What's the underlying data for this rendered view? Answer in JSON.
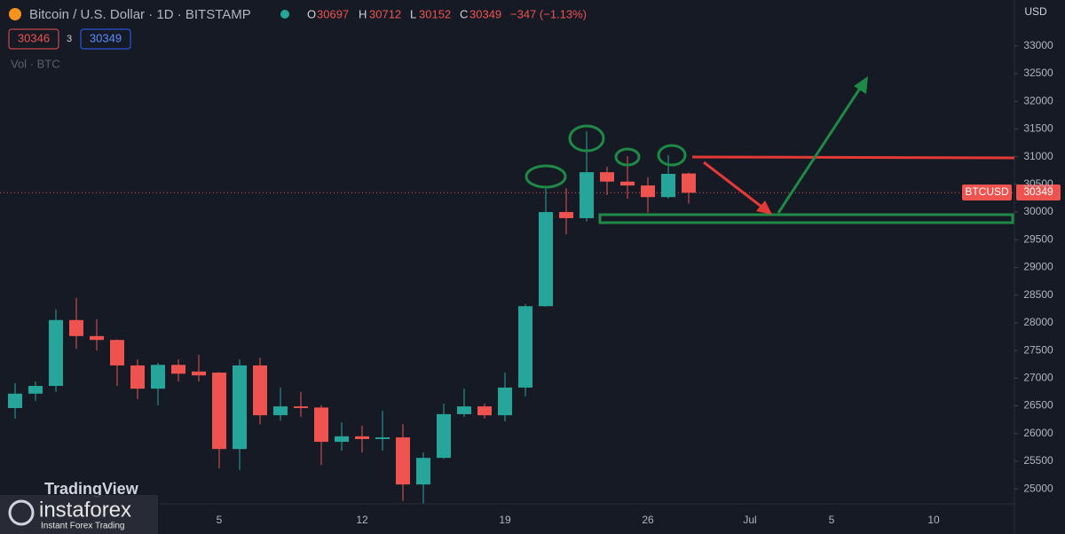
{
  "chart_data": {
    "type": "candlestick",
    "title": "Bitcoin / U.S. Dollar · 1D · BITSTAMP",
    "header": {
      "o_label": "O",
      "open": 30697,
      "h_label": "H",
      "high": 30712,
      "l_label": "L",
      "low": 30152,
      "c_label": "C",
      "close": 30349,
      "change": "−347 (−1.13%)"
    },
    "bid": 30346,
    "spread": 3,
    "ask": 30349,
    "volume_label": "Vol · BTC",
    "price_tag": {
      "symbol": "BTCUSD",
      "value": 30349
    },
    "currency": "USD",
    "watermark": "TradingView",
    "brand": "instaforex",
    "brand_tagline": "Instant Forex Trading",
    "categories": [
      null,
      null,
      null,
      null,
      null,
      null,
      null,
      null,
      null,
      null,
      "5",
      null,
      null,
      null,
      null,
      null,
      null,
      "12",
      null,
      null,
      null,
      null,
      null,
      null,
      "19",
      null,
      null,
      null,
      null,
      null,
      null,
      "26",
      null,
      null,
      null,
      null,
      "Jul",
      null,
      null,
      null,
      "5",
      null,
      null,
      null,
      null,
      "10",
      null,
      null,
      null
    ],
    "open": [
      26460,
      26720,
      26860,
      28050,
      27760,
      27690,
      27230,
      26810,
      27240,
      27120,
      27100,
      25720,
      27230,
      26330,
      26490,
      26470,
      25850,
      25950,
      25900,
      25930,
      25080,
      25560,
      26350,
      26490,
      26330,
      26830,
      28300,
      30000,
      29890,
      30720,
      30550,
      30480,
      30270,
      30697,
      null,
      null,
      null,
      null,
      null,
      null,
      null,
      null,
      null,
      null,
      null,
      null,
      null,
      null,
      null
    ],
    "high": [
      26910,
      26940,
      28240,
      28450,
      28060,
      27700,
      27340,
      27280,
      27340,
      27420,
      27110,
      27340,
      27370,
      26830,
      26750,
      26510,
      26200,
      26140,
      26410,
      26170,
      25660,
      26540,
      26810,
      26540,
      27100,
      28340,
      30420,
      30430,
      31460,
      30820,
      31010,
      30630,
      31030,
      30712,
      null,
      null,
      null,
      null,
      null,
      null,
      null,
      null,
      null,
      null,
      null,
      null,
      null,
      null,
      null
    ],
    "low": [
      26270,
      26590,
      26750,
      27530,
      27500,
      26860,
      26620,
      26510,
      26940,
      26940,
      25370,
      25340,
      26170,
      26230,
      26300,
      25430,
      25690,
      25660,
      25690,
      24780,
      24740,
      25540,
      26300,
      26270,
      26220,
      26670,
      28290,
      29600,
      29830,
      30310,
      30240,
      29990,
      30240,
      30152,
      null,
      null,
      null,
      null,
      null,
      null,
      null,
      null,
      null,
      null,
      null,
      null,
      null,
      null,
      null
    ],
    "close": [
      26720,
      26860,
      28050,
      27760,
      27690,
      27230,
      26810,
      27240,
      27080,
      27050,
      25720,
      27230,
      26330,
      26490,
      26460,
      25850,
      25950,
      25900,
      25930,
      25080,
      25560,
      26350,
      26490,
      26330,
      26830,
      28300,
      30000,
      29890,
      30720,
      30550,
      30480,
      30270,
      30690,
      30349,
      null,
      null,
      null,
      null,
      null,
      null,
      null,
      null,
      null,
      null,
      null,
      null,
      null,
      null,
      null
    ],
    "up_color": "#26a69a",
    "down_color": "#ef5350",
    "ylim": [
      24730,
      33830
    ],
    "yticks": [
      25000,
      25500,
      26000,
      26500,
      27000,
      27500,
      28000,
      28500,
      29000,
      29500,
      30000,
      30500,
      31000,
      31500,
      32000,
      32500,
      33000
    ]
  }
}
